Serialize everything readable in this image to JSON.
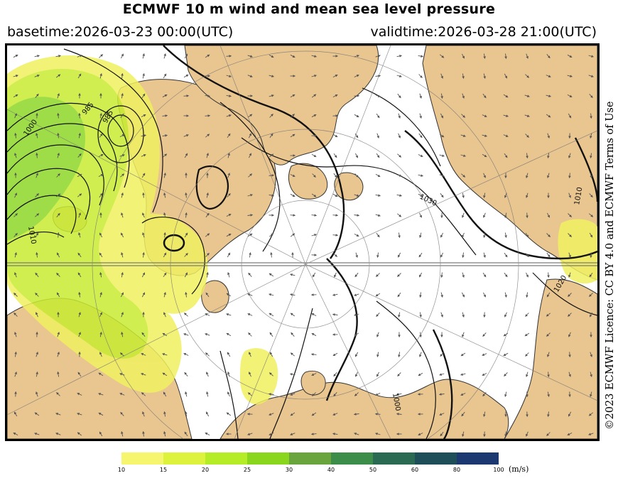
{
  "header": {
    "title": "ECMWF 10 m wind and mean sea level pressure",
    "basetime": "basetime:2026-03-23 00:00(UTC)",
    "validtime": "validtime:2026-03-28 21:00(UTC)"
  },
  "license": "©2023 ECMWF Licence: CC BY 4.0 and ECMWF Terms of Use",
  "isobar_labels": [
    "1000",
    "985",
    "985",
    "1010",
    "1030",
    "1010",
    "1020",
    "1000"
  ],
  "colorbar": {
    "colors": [
      "#f5f56e",
      "#dcf23c",
      "#b4ec28",
      "#8ad61e",
      "#6aa43c",
      "#3c8c4a",
      "#2a6a52",
      "#1e4e58",
      "#1c3870",
      "#1e2888",
      "#2c34b4"
    ],
    "ticks": [
      "10",
      "15",
      "20",
      "25",
      "30",
      "40",
      "50",
      "60",
      "80",
      "100"
    ],
    "unit": "(m/s)"
  },
  "colors": {
    "land": "#e9c58f",
    "sea": "#ffffff",
    "wind_light": "#f0f060",
    "wind_medium": "#c8ec32",
    "wind_strong": "#8ed828"
  }
}
